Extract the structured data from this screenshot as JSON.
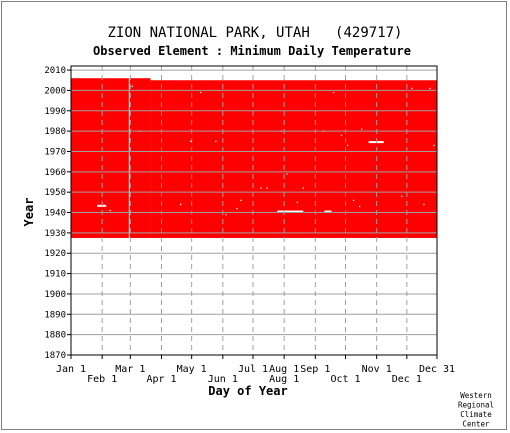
{
  "chart_data": {
    "type": "heatmap",
    "title": "ZION NATIONAL PARK, UTAH   (429717)",
    "subtitle": "Observed Element : Minimum Daily Temperature",
    "xlabel": "Day of Year",
    "ylabel": "Year",
    "credit_lines": [
      "Western",
      "Regional",
      "Climate",
      "Center"
    ],
    "xlim": [
      1,
      365
    ],
    "ylim": [
      1870,
      2012
    ],
    "y_ticks": [
      1870,
      1880,
      1890,
      1900,
      1910,
      1920,
      1930,
      1940,
      1950,
      1960,
      1970,
      1980,
      1990,
      2000,
      2010
    ],
    "x_ticks_top_row": [
      {
        "label": "Jan 1",
        "day": 1
      },
      {
        "label": "Mar 1",
        "day": 60
      },
      {
        "label": "May 1",
        "day": 121
      },
      {
        "label": "Jul 1",
        "day": 182
      },
      {
        "label": "Aug 1",
        "day": 213
      },
      {
        "label": "Sep 1",
        "day": 244
      },
      {
        "label": "Nov 1",
        "day": 305
      },
      {
        "label": "Dec 31",
        "day": 365
      }
    ],
    "x_ticks_bottom_row": [
      {
        "label": "Feb 1",
        "day": 32
      },
      {
        "label": "Apr 1",
        "day": 91
      },
      {
        "label": "Jun 1",
        "day": 152
      },
      {
        "label": "Aug 1",
        "day": 213
      },
      {
        "label": "Oct 1",
        "day": 274
      },
      {
        "label": "Dec 1",
        "day": 335
      }
    ],
    "grid": true,
    "data_color": "#ff0000",
    "background_color": "#ffffff",
    "coverage": [
      {
        "day_start": 1,
        "day_end": 80,
        "year_start": 1927.5,
        "year_end": 2006
      },
      {
        "day_start": 80,
        "day_end": 365,
        "year_start": 1927.5,
        "year_end": 2005
      }
    ],
    "missing_segments": [
      {
        "day_start": 27,
        "day_end": 36,
        "year": 1943.3
      },
      {
        "day_start": 206,
        "day_end": 232,
        "year": 1940.5
      },
      {
        "day_start": 253,
        "day_end": 260,
        "year": 1940.5
      },
      {
        "day_start": 297,
        "day_end": 312,
        "year": 1974.6
      },
      {
        "day_start": 58.5,
        "day_end": 59.5,
        "year_start": 1927.5,
        "year_end": 2006
      }
    ],
    "missing_points": [
      {
        "day": 40,
        "year": 1941
      },
      {
        "day": 62,
        "year": 2002
      },
      {
        "day": 70,
        "year": 1980
      },
      {
        "day": 110,
        "year": 1944
      },
      {
        "day": 120,
        "year": 1975
      },
      {
        "day": 130,
        "year": 1999
      },
      {
        "day": 145,
        "year": 1975
      },
      {
        "day": 155,
        "year": 1939
      },
      {
        "day": 166,
        "year": 1942
      },
      {
        "day": 170,
        "year": 1946
      },
      {
        "day": 190,
        "year": 1952
      },
      {
        "day": 196,
        "year": 1952
      },
      {
        "day": 210,
        "year": 1980
      },
      {
        "day": 216,
        "year": 1959
      },
      {
        "day": 226,
        "year": 1945
      },
      {
        "day": 232,
        "year": 1952
      },
      {
        "day": 252,
        "year": 1980
      },
      {
        "day": 262,
        "year": 1999
      },
      {
        "day": 270,
        "year": 1978
      },
      {
        "day": 276,
        "year": 1973
      },
      {
        "day": 282,
        "year": 1946
      },
      {
        "day": 288,
        "year": 1943
      },
      {
        "day": 290,
        "year": 1981
      },
      {
        "day": 330,
        "year": 1948
      },
      {
        "day": 340,
        "year": 2001
      },
      {
        "day": 352,
        "year": 1944
      },
      {
        "day": 358,
        "year": 2001
      },
      {
        "day": 362,
        "year": 1973
      }
    ]
  }
}
